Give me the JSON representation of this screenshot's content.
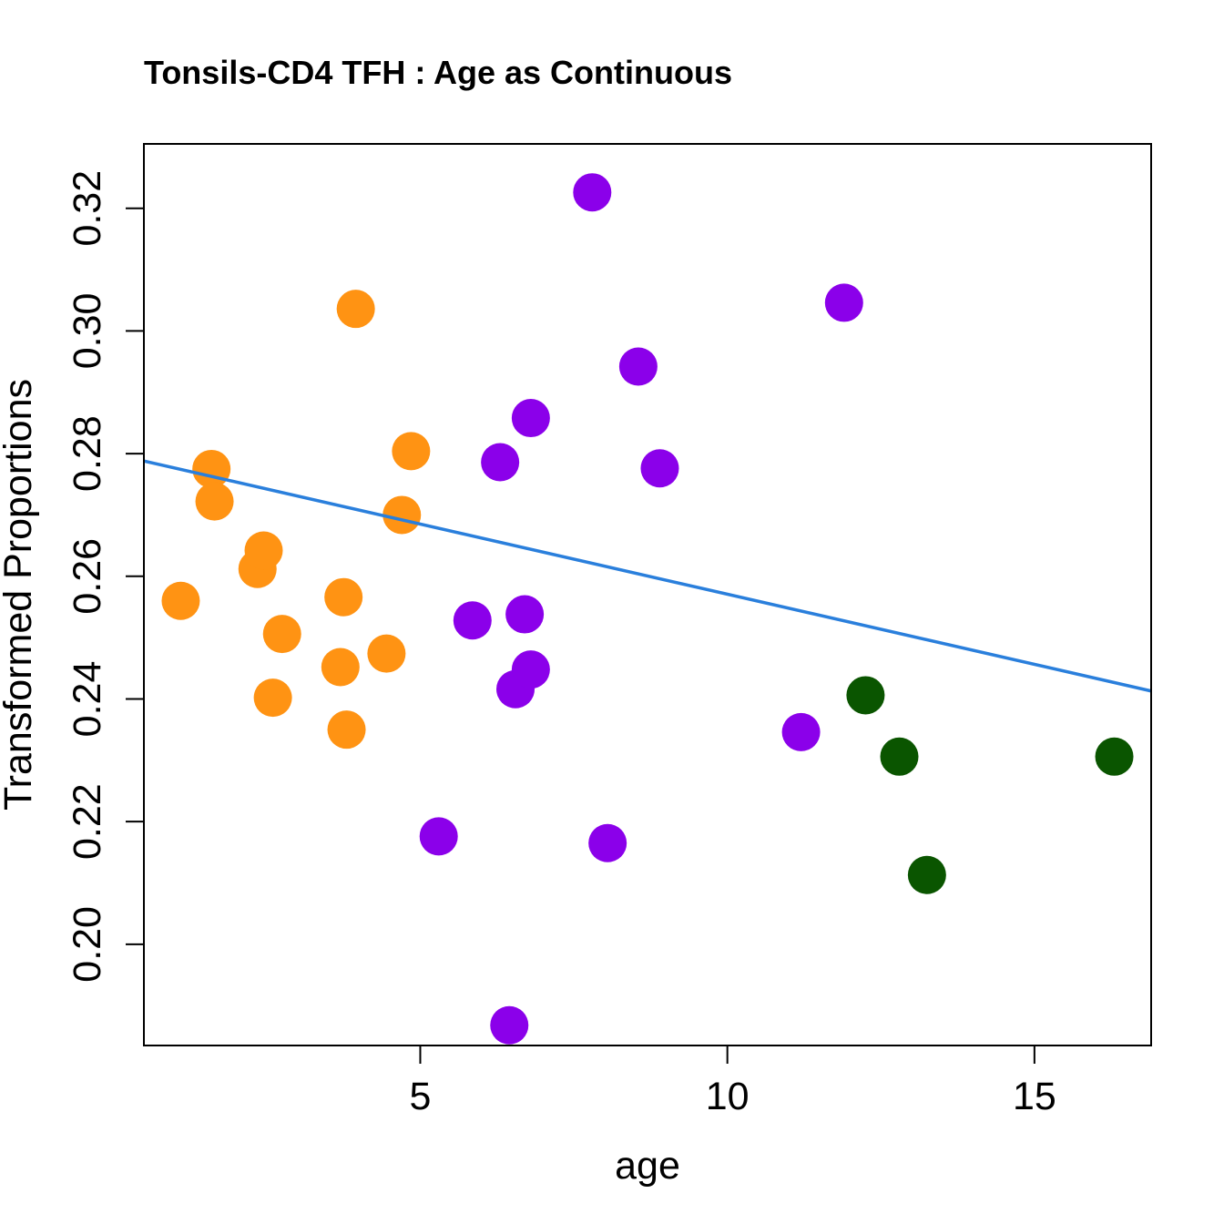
{
  "chart_data": {
    "type": "scatter",
    "title": "Tonsils-CD4 TFH : Age as Continuous",
    "xlabel": "age",
    "ylabel": "Transformed Proportions",
    "xlim": [
      0.5,
      16.9
    ],
    "ylim": [
      0.1835,
      0.3305
    ],
    "x_ticks": [
      5,
      10,
      15
    ],
    "x_tick_labels": [
      "5",
      "10",
      "15"
    ],
    "y_ticks": [
      0.2,
      0.22,
      0.24,
      0.26,
      0.28,
      0.3,
      0.32
    ],
    "y_tick_labels": [
      "0.20",
      "0.22",
      "0.24",
      "0.26",
      "0.28",
      "0.30",
      "0.32"
    ],
    "grid": false,
    "regression_line": {
      "color": "#2a7fdc",
      "x": [
        0.5,
        16.9
      ],
      "y": [
        0.2788,
        0.2413
      ]
    },
    "series": [
      {
        "name": "orange",
        "color": "#ff9313",
        "points": [
          {
            "x": 1.1,
            "y": 0.256
          },
          {
            "x": 1.6,
            "y": 0.2775
          },
          {
            "x": 1.65,
            "y": 0.2722
          },
          {
            "x": 2.35,
            "y": 0.2612
          },
          {
            "x": 2.45,
            "y": 0.2642
          },
          {
            "x": 2.6,
            "y": 0.2402
          },
          {
            "x": 2.75,
            "y": 0.2506
          },
          {
            "x": 3.7,
            "y": 0.2452
          },
          {
            "x": 3.75,
            "y": 0.2566
          },
          {
            "x": 3.8,
            "y": 0.235
          },
          {
            "x": 3.95,
            "y": 0.3036
          },
          {
            "x": 4.45,
            "y": 0.2474
          },
          {
            "x": 4.7,
            "y": 0.27
          },
          {
            "x": 4.85,
            "y": 0.2804
          }
        ]
      },
      {
        "name": "purple",
        "color": "#8b00ea",
        "points": [
          {
            "x": 5.3,
            "y": 0.2176
          },
          {
            "x": 5.85,
            "y": 0.2528
          },
          {
            "x": 6.3,
            "y": 0.2786
          },
          {
            "x": 6.45,
            "y": 0.1868
          },
          {
            "x": 6.55,
            "y": 0.2416
          },
          {
            "x": 6.7,
            "y": 0.2538
          },
          {
            "x": 6.8,
            "y": 0.2448
          },
          {
            "x": 6.8,
            "y": 0.2858
          },
          {
            "x": 7.8,
            "y": 0.3226
          },
          {
            "x": 8.05,
            "y": 0.2165
          },
          {
            "x": 8.55,
            "y": 0.2942
          },
          {
            "x": 8.9,
            "y": 0.2776
          },
          {
            "x": 11.2,
            "y": 0.2346
          },
          {
            "x": 11.9,
            "y": 0.3046
          }
        ]
      },
      {
        "name": "green",
        "color": "#0a5500",
        "points": [
          {
            "x": 12.25,
            "y": 0.2406
          },
          {
            "x": 12.8,
            "y": 0.2306
          },
          {
            "x": 13.25,
            "y": 0.2113
          },
          {
            "x": 16.3,
            "y": 0.2306
          }
        ]
      }
    ]
  }
}
